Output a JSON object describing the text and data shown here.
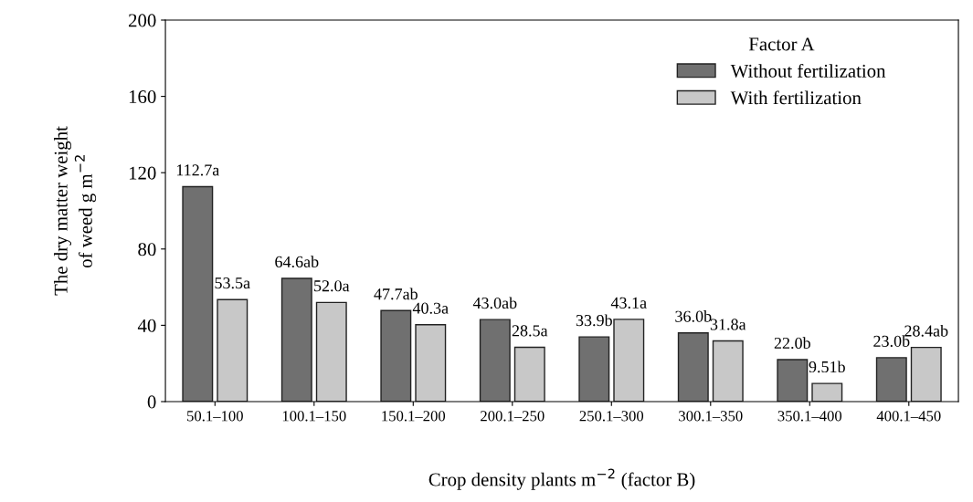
{
  "chart_data": {
    "type": "bar",
    "xlabel": "Crop density plants m$^{−2}$ (factor B)",
    "ylabel": "The dry matter weight\nof weed g m$^{−2}$",
    "legend_title": "Factor A",
    "categories": [
      "50.1–100",
      "100.1–150",
      "150.1–200",
      "200.1–250",
      "250.1–300",
      "300.1–350",
      "350.1–400",
      "400.1–450"
    ],
    "series": [
      {
        "name": "Without fertilization",
        "color": "#707070",
        "values": [
          112.7,
          64.6,
          47.7,
          43.0,
          33.9,
          36.0,
          22.0,
          23.0
        ],
        "value_labels": [
          "112.7a",
          "64.6ab",
          "47.7ab",
          "43.0ab",
          "33.9b",
          "36.0b",
          "22.0b",
          "23.0b"
        ]
      },
      {
        "name": "With fertilization",
        "color": "#c8c8c8",
        "values": [
          53.5,
          52.0,
          40.3,
          28.5,
          43.1,
          31.8,
          9.51,
          28.4
        ],
        "value_labels": [
          "53.5a",
          "52.0a",
          "40.3a",
          "28.5a",
          "43.1a",
          "31.8a",
          "9.51b",
          "28.4ab"
        ]
      }
    ],
    "ylim": [
      0,
      200
    ],
    "yticks": [
      0,
      40,
      80,
      120,
      160,
      200
    ],
    "grid": false,
    "legend": "top right"
  }
}
